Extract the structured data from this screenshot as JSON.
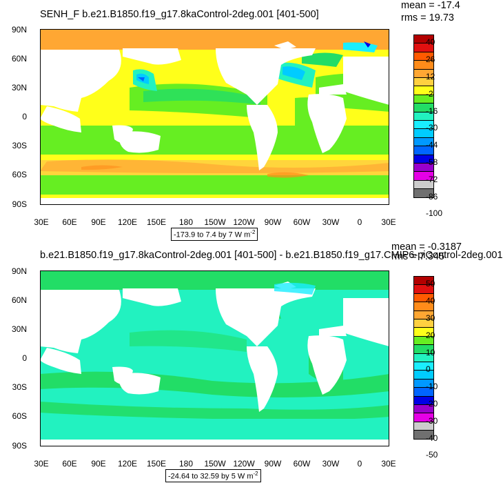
{
  "panels": [
    {
      "title": "SENH_F b.e21.B1850.f19_g17.8kaControl-2deg.001 [401-500]",
      "mean": "mean = -17.4",
      "rms": "rms = 19.73",
      "levels_text": "-173.9 to 7.4 by 7  W m",
      "levels_sup": "-2",
      "y_ticks": [
        "90N",
        "60N",
        "30N",
        "0",
        "30S",
        "60S",
        "90S"
      ],
      "x_ticks": [
        "30E",
        "60E",
        "90E",
        "120E",
        "150E",
        "180",
        "150W",
        "120W",
        "90W",
        "60W",
        "30W",
        "0",
        "30E"
      ],
      "colorbar_labels": [
        "40",
        "26",
        "12",
        "-2",
        "-16",
        "-30",
        "-44",
        "-58",
        "-72",
        "-86",
        "-100"
      ],
      "colorbar_colors": [
        "#b30000",
        "#e01010",
        "#ff5a00",
        "#ff8c1a",
        "#ffa733",
        "#ffd040",
        "#ffff1a",
        "#66ee22",
        "#22dd66",
        "#22f2c0",
        "#1aeeff",
        "#00ccff",
        "#0099ff",
        "#0066ff",
        "#0000e6",
        "#9900cc",
        "#e600e6",
        "#cccccc",
        "#707070"
      ]
    },
    {
      "title": "b.e21.B1850.f19_g17.8kaControl-2deg.001 [401-500] - b.e21.B1850.f19_g17.CMIP6-piControl-2deg.001",
      "mean": "mean = -0.3187",
      "rms": "rms = 7.345",
      "levels_text": "-24.64 to 32.59 by 5  W m",
      "levels_sup": "-2",
      "y_ticks": [
        "90N",
        "60N",
        "30N",
        "0",
        "30S",
        "60S",
        "90S"
      ],
      "x_ticks": [
        "30E",
        "60E",
        "90E",
        "120E",
        "150E",
        "180",
        "150W",
        "120W",
        "90W",
        "60W",
        "30W",
        "0",
        "30E"
      ],
      "colorbar_labels": [
        "50",
        "40",
        "30",
        "20",
        "10",
        "0",
        "-10",
        "-20",
        "-30",
        "-40",
        "-50"
      ],
      "colorbar_colors": [
        "#b30000",
        "#e01010",
        "#ff5a00",
        "#ff8c1a",
        "#ffa733",
        "#ffd040",
        "#ffff1a",
        "#66ee22",
        "#22dd66",
        "#22f2c0",
        "#1aeeff",
        "#00ccff",
        "#0099ff",
        "#0066ff",
        "#0000e6",
        "#9900cc",
        "#e600e6",
        "#cccccc",
        "#707070"
      ]
    }
  ],
  "chart_data": [
    {
      "type": "heatmap",
      "title": "SENH_F b.e21.B1850.f19_g17.8kaControl-2deg.001 [401-500]",
      "xlabel": "",
      "ylabel": "",
      "x_ticks": [
        "30E",
        "60E",
        "90E",
        "120E",
        "150E",
        "180",
        "150W",
        "120W",
        "90W",
        "60W",
        "30W",
        "0",
        "30E"
      ],
      "y_ticks": [
        "90N",
        "60N",
        "30N",
        "0",
        "30S",
        "60S",
        "90S"
      ],
      "xlim": [
        30,
        390
      ],
      "ylim": [
        -90,
        90
      ],
      "color_levels": [
        40,
        26,
        12,
        -2,
        -16,
        -30,
        -44,
        -58,
        -72,
        -86,
        -100
      ],
      "units": "W m-2",
      "stats": {
        "mean": -17.4,
        "rms": 19.73
      },
      "contour_range": {
        "min": -173.9,
        "max": 7.4,
        "step": 7
      },
      "grid": false
    },
    {
      "type": "heatmap",
      "title": "b.e21.B1850.f19_g17.8kaControl-2deg.001 [401-500] - b.e21.B1850.f19_g17.CMIP6-piControl-2deg.001",
      "xlabel": "",
      "ylabel": "",
      "x_ticks": [
        "30E",
        "60E",
        "90E",
        "120E",
        "150E",
        "180",
        "150W",
        "120W",
        "90W",
        "60W",
        "30W",
        "0",
        "30E"
      ],
      "y_ticks": [
        "90N",
        "60N",
        "30N",
        "0",
        "30S",
        "60S",
        "90S"
      ],
      "xlim": [
        30,
        390
      ],
      "ylim": [
        -90,
        90
      ],
      "color_levels": [
        50,
        40,
        30,
        20,
        10,
        0,
        -10,
        -20,
        -30,
        -40,
        -50
      ],
      "units": "W m-2",
      "stats": {
        "mean": -0.3187,
        "rms": 7.345
      },
      "contour_range": {
        "min": -24.64,
        "max": 32.59,
        "step": 5
      },
      "grid": false
    }
  ]
}
